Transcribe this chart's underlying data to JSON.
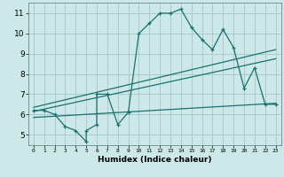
{
  "xlabel": "Humidex (Indice chaleur)",
  "bg_color": "#cce8e8",
  "grid_color": "#aacccc",
  "line_color": "#1a7070",
  "xlim": [
    -0.5,
    23.5
  ],
  "ylim": [
    4.5,
    11.5
  ],
  "xticks": [
    0,
    1,
    2,
    3,
    4,
    5,
    6,
    7,
    8,
    9,
    10,
    11,
    12,
    13,
    14,
    15,
    16,
    17,
    18,
    19,
    20,
    21,
    22,
    23
  ],
  "yticks": [
    5,
    6,
    7,
    8,
    9,
    10,
    11
  ],
  "main_x": [
    0,
    1,
    2,
    3,
    4,
    5,
    5,
    6,
    6,
    7,
    8,
    9,
    10,
    11,
    12,
    13,
    14,
    15,
    16,
    17,
    18,
    19,
    20,
    21,
    22,
    23
  ],
  "main_y": [
    6.2,
    6.2,
    6.0,
    5.4,
    5.2,
    4.65,
    5.2,
    5.5,
    7.0,
    7.0,
    5.5,
    6.1,
    10.0,
    10.5,
    11.0,
    11.0,
    11.2,
    10.3,
    9.7,
    9.2,
    10.2,
    9.3,
    7.3,
    8.3,
    6.5,
    6.5
  ],
  "upper_line_x": [
    0,
    23
  ],
  "upper_line_y": [
    6.35,
    9.2
  ],
  "mid_line_x": [
    0,
    23
  ],
  "mid_line_y": [
    6.15,
    8.75
  ],
  "lower_line_x": [
    0,
    23
  ],
  "lower_line_y": [
    5.85,
    6.55
  ]
}
